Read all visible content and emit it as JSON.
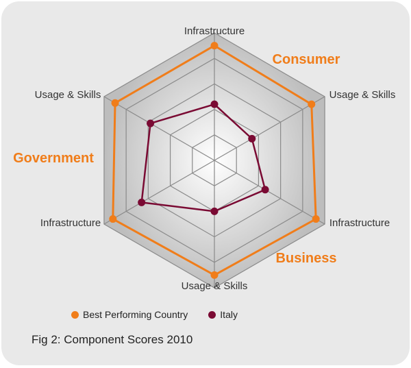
{
  "colors": {
    "best": "#f07d1a",
    "italy": "#7a0a33",
    "group_label": "#f07d1a"
  },
  "legend": {
    "best_label": "Best Performing Country",
    "italy_label": "Italy"
  },
  "caption": "Fig 2: Component Scores 2010",
  "chart_data": {
    "type": "radar",
    "axes": [
      "Infrastructure",
      "Usage & Skills",
      "Infrastructure",
      "Usage & Skills",
      "Infrastructure",
      "Usage & Skills"
    ],
    "group_labels": [
      "Consumer",
      "Business",
      "Government"
    ],
    "rlim": [
      0,
      5
    ],
    "grid": true,
    "legend_position": "bottom-left",
    "series": [
      {
        "name": "Best Performing Country",
        "values": [
          4.5,
          4.4,
          4.6,
          4.5,
          4.6,
          4.5
        ]
      },
      {
        "name": "Italy",
        "values": [
          2.2,
          1.7,
          2.3,
          2.0,
          3.3,
          2.9
        ]
      }
    ]
  }
}
